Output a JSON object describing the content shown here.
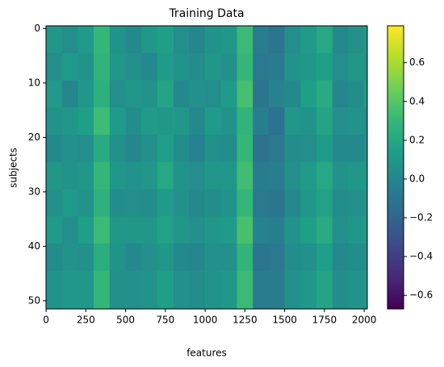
{
  "chart_data": {
    "type": "heatmap",
    "title": "Training Data",
    "x_label": "features",
    "y_label": "subjects",
    "xlim": [
      -0.5,
      2019.5
    ],
    "ylim": [
      -0.5,
      51.5
    ],
    "y_inverted": true,
    "xticks": [
      0,
      250,
      500,
      750,
      1000,
      1250,
      1500,
      1750,
      2000
    ],
    "yticks": [
      0,
      10,
      20,
      30,
      40,
      50
    ],
    "xbins": [
      -0.5,
      99.5,
      199.5,
      299.5,
      399.5,
      499.5,
      599.5,
      699.5,
      799.5,
      899.5,
      999.5,
      1099.5,
      1199.5,
      1299.5,
      1399.5,
      1499.5,
      1599.5,
      1699.5,
      1799.5,
      1899.5,
      1999.5,
      2019.5
    ],
    "ybins": [
      -0.5,
      4.5,
      9.5,
      14.5,
      19.5,
      24.5,
      29.5,
      34.5,
      39.5,
      44.5,
      51.5
    ],
    "values": [
      [
        0.1,
        0.05,
        0.12,
        0.3,
        0.08,
        0.02,
        0.1,
        0.15,
        0.05,
        0.0,
        0.08,
        0.1,
        0.32,
        -0.05,
        -0.1,
        0.05,
        0.12,
        0.2,
        0.02,
        0.06,
        0.1
      ],
      [
        0.05,
        0.12,
        0.08,
        0.28,
        0.1,
        0.06,
        0.02,
        0.12,
        0.08,
        0.04,
        0.1,
        0.06,
        0.3,
        -0.08,
        -0.06,
        0.08,
        0.1,
        0.15,
        0.05,
        0.1,
        0.08
      ],
      [
        0.12,
        0.0,
        0.1,
        0.25,
        0.05,
        0.1,
        0.08,
        0.18,
        0.02,
        0.06,
        0.05,
        0.12,
        0.35,
        -0.1,
        -0.02,
        0.02,
        0.15,
        0.22,
        0.0,
        0.04,
        0.12
      ],
      [
        0.08,
        0.1,
        0.15,
        0.33,
        0.12,
        0.04,
        0.12,
        0.1,
        0.1,
        0.02,
        0.12,
        0.08,
        0.28,
        -0.04,
        -0.12,
        0.1,
        0.08,
        0.18,
        0.06,
        0.08,
        0.05
      ],
      [
        0.02,
        0.06,
        0.05,
        0.22,
        0.06,
        0.0,
        0.06,
        0.14,
        0.04,
        -0.02,
        0.06,
        0.04,
        0.3,
        -0.12,
        -0.08,
        0.04,
        0.05,
        0.12,
        0.02,
        0.02,
        0.06
      ],
      [
        0.1,
        0.08,
        0.1,
        0.3,
        0.1,
        0.08,
        0.1,
        0.2,
        0.08,
        0.05,
        0.1,
        0.1,
        0.34,
        -0.06,
        -0.05,
        0.06,
        0.12,
        0.2,
        0.08,
        0.1,
        0.1
      ],
      [
        0.06,
        0.12,
        0.08,
        0.26,
        0.04,
        0.05,
        0.04,
        0.12,
        0.06,
        0.02,
        0.04,
        0.08,
        0.3,
        -0.08,
        -0.1,
        0.02,
        0.1,
        0.16,
        0.04,
        0.06,
        0.08
      ],
      [
        0.12,
        0.05,
        0.14,
        0.32,
        0.1,
        0.1,
        0.1,
        0.16,
        0.1,
        0.06,
        0.1,
        0.12,
        0.36,
        -0.02,
        -0.04,
        0.08,
        0.14,
        0.22,
        0.06,
        0.1,
        0.12
      ],
      [
        0.04,
        0.08,
        0.06,
        0.24,
        0.08,
        0.02,
        0.06,
        0.1,
        0.02,
        0.0,
        0.06,
        0.06,
        0.28,
        -0.1,
        -0.08,
        0.04,
        0.06,
        0.14,
        0.02,
        0.04,
        0.06
      ],
      [
        0.08,
        0.1,
        0.1,
        0.3,
        0.06,
        0.06,
        0.08,
        0.15,
        0.06,
        0.04,
        0.08,
        0.1,
        0.32,
        -0.06,
        -0.06,
        0.06,
        0.1,
        0.18,
        0.04,
        0.08,
        0.1
      ]
    ],
    "colorbar": {
      "lim": [
        -0.67,
        0.79
      ],
      "ticks": [
        {
          "value": -0.6,
          "label": "−0.6"
        },
        {
          "value": -0.4,
          "label": "−0.4"
        },
        {
          "value": -0.2,
          "label": "−0.2"
        },
        {
          "value": 0,
          "label": "0.0"
        },
        {
          "value": 0.2,
          "label": "0.2"
        },
        {
          "value": 0.4,
          "label": "0.4"
        },
        {
          "value": 0.6,
          "label": "0.6"
        }
      ]
    },
    "colormap": [
      "#440154",
      "#482878",
      "#3e4989",
      "#31688e",
      "#26828e",
      "#1f9e89",
      "#35b779",
      "#6ece58",
      "#b5de2b",
      "#fde725"
    ]
  }
}
